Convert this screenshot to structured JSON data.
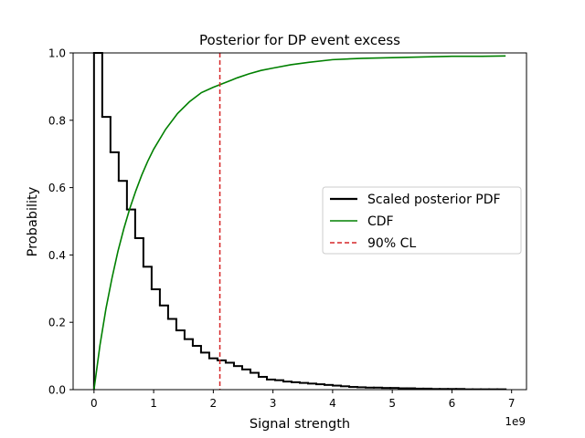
{
  "chart_data": {
    "type": "line",
    "title": "Posterior for DP event excess",
    "xlabel": "Signal strength",
    "ylabel": "Probability",
    "x_offset_label": "1e9",
    "xlim": [
      -0.35,
      7.25
    ],
    "ylim": [
      0,
      1.0
    ],
    "x_unit_multiplier": 1000000000,
    "xticks": [
      0,
      1,
      2,
      3,
      4,
      5,
      6,
      7
    ],
    "yticks": [
      0.0,
      0.2,
      0.4,
      0.6,
      0.8,
      1.0
    ],
    "xtick_labels": [
      "0",
      "1",
      "2",
      "3",
      "4",
      "5",
      "6",
      "7"
    ],
    "ytick_labels": [
      "0.0",
      "0.2",
      "0.4",
      "0.6",
      "0.8",
      "1.0"
    ],
    "grid": false,
    "legend_placement": "center-right",
    "series": [
      {
        "name": "Scaled posterior PDF",
        "kind": "step",
        "color": "#000000",
        "edges": [
          0.0,
          0.138,
          0.276,
          0.414,
          0.552,
          0.69,
          0.828,
          0.966,
          1.104,
          1.242,
          1.38,
          1.518,
          1.656,
          1.794,
          1.932,
          2.07,
          2.208,
          2.346,
          2.484,
          2.622,
          2.76,
          2.898,
          3.036,
          3.174,
          3.312,
          3.45,
          3.588,
          3.726,
          3.864,
          4.002,
          4.14,
          4.278,
          4.416,
          4.554,
          4.692,
          4.83,
          4.968,
          5.106,
          5.244,
          5.382,
          5.52,
          5.658,
          5.796,
          5.934,
          6.072,
          6.21,
          6.348,
          6.486,
          6.624,
          6.762,
          6.9
        ],
        "values": [
          1.0,
          0.81,
          0.705,
          0.62,
          0.535,
          0.45,
          0.365,
          0.298,
          0.25,
          0.21,
          0.176,
          0.15,
          0.13,
          0.11,
          0.093,
          0.087,
          0.08,
          0.07,
          0.06,
          0.05,
          0.038,
          0.03,
          0.028,
          0.024,
          0.022,
          0.02,
          0.018,
          0.016,
          0.014,
          0.012,
          0.01,
          0.008,
          0.007,
          0.006,
          0.006,
          0.005,
          0.005,
          0.004,
          0.004,
          0.003,
          0.003,
          0.002,
          0.002,
          0.002,
          0.002,
          0.001,
          0.001,
          0.001,
          0.001,
          0.001
        ]
      },
      {
        "name": "CDF",
        "kind": "line",
        "color": "#008000",
        "x": [
          0.0,
          0.1,
          0.2,
          0.3,
          0.4,
          0.5,
          0.6,
          0.7,
          0.8,
          0.9,
          1.0,
          1.2,
          1.4,
          1.6,
          1.8,
          2.0,
          2.2,
          2.4,
          2.6,
          2.8,
          3.0,
          3.3,
          3.6,
          4.0,
          4.5,
          5.0,
          5.5,
          6.0,
          6.5,
          6.9
        ],
        "y": [
          0.0,
          0.132,
          0.24,
          0.33,
          0.41,
          0.478,
          0.538,
          0.59,
          0.637,
          0.678,
          0.714,
          0.773,
          0.82,
          0.855,
          0.882,
          0.898,
          0.912,
          0.926,
          0.938,
          0.948,
          0.955,
          0.965,
          0.972,
          0.98,
          0.984,
          0.986,
          0.988,
          0.99,
          0.99,
          0.991
        ]
      },
      {
        "name": "90% CL",
        "kind": "vline",
        "color": "#d62728",
        "x": 2.11
      }
    ]
  }
}
